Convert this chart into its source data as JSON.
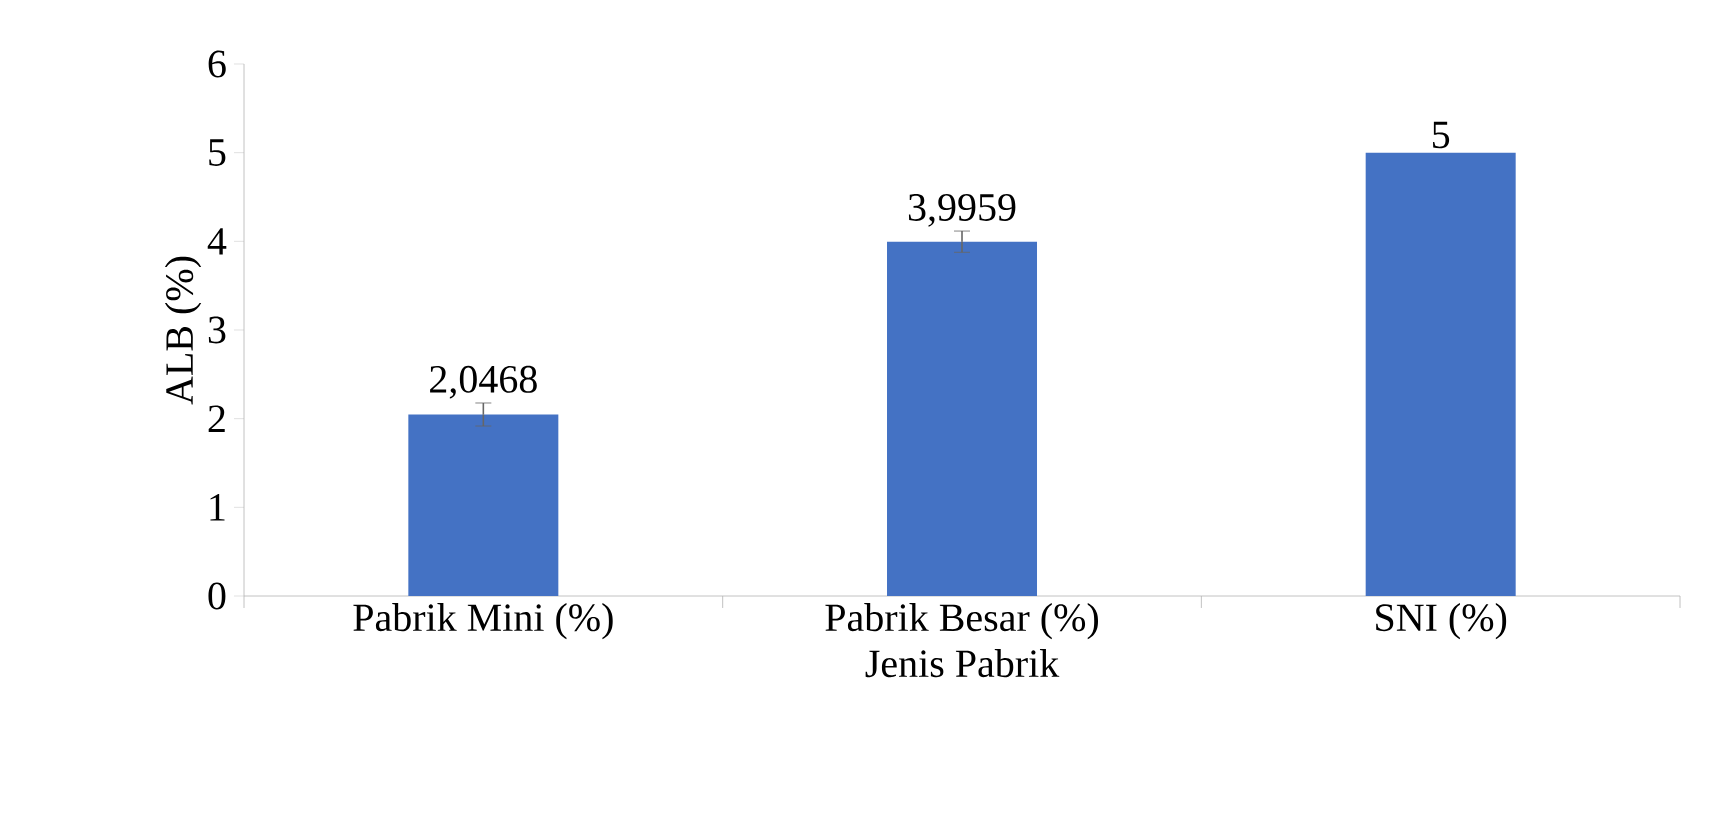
{
  "chart_data": {
    "type": "bar",
    "xlabel": "Jenis Pabrik",
    "ylabel": "ALB (%)",
    "categories": [
      "Pabrik Mini (%)",
      "Pabrik Besar (%)",
      "SNI (%)"
    ],
    "values": [
      2.0468,
      3.9959,
      5
    ],
    "errors": [
      0.13,
      0.12,
      null
    ],
    "value_labels": [
      "2,0468",
      "3,9959",
      "5"
    ],
    "color": "#4472c4",
    "ylim": [
      0,
      6
    ],
    "yticks": [
      0,
      1,
      2,
      3,
      4,
      5,
      6
    ],
    "grid": false
  }
}
